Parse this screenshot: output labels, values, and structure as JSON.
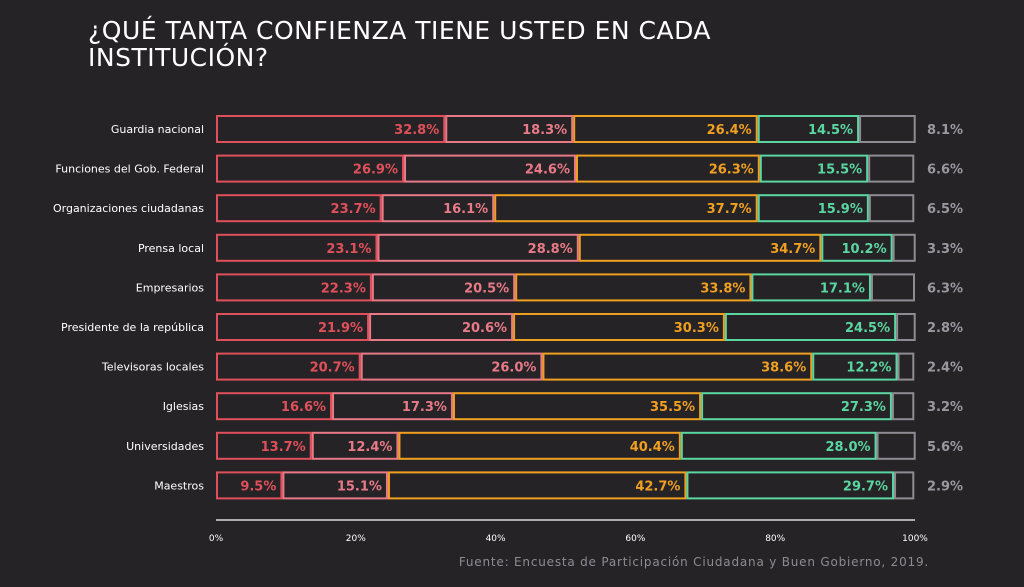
{
  "title": "¿QUÉ TANTA CONFIENZA TIENE USTED EN CADA INSTITUCIÓN?",
  "source": "Fuente: Encuesta de Participación Ciudadana y Buen Gobierno, 2019.",
  "colors": {
    "background": "#262327",
    "series": [
      "#e0505a",
      "#e87a88",
      "#f0a020",
      "#5ad6a0",
      "#8f8b93"
    ]
  },
  "chart_data": {
    "type": "bar",
    "orientation": "horizontal",
    "stacked": true,
    "categories": [
      "Guardia nacional",
      "Funciones del Gob. Federal",
      "Organizaciones ciudadanas",
      "Prensa local",
      "Empresarios",
      "Presidente de la república",
      "Televisoras locales",
      "Iglesias",
      "Universidades",
      "Maestros"
    ],
    "series": [
      {
        "values": [
          32.8,
          26.9,
          23.7,
          23.1,
          22.3,
          21.9,
          20.7,
          16.6,
          13.7,
          9.5
        ],
        "labels": [
          "32.8%",
          "26.9%",
          "23.7%",
          "23.1%",
          "22.3%",
          "21.9%",
          "20.7%",
          "16.6%",
          "13.7%",
          "9.5%"
        ]
      },
      {
        "values": [
          18.3,
          24.6,
          16.1,
          28.8,
          20.5,
          20.6,
          26.0,
          17.3,
          12.4,
          15.1
        ],
        "labels": [
          "18.3%",
          "24.6%",
          "16.1%",
          "28.8%",
          "20.5%",
          "20.6%",
          "26.0%",
          "17.3%",
          "12.4%",
          "15.1%"
        ]
      },
      {
        "values": [
          26.4,
          26.3,
          37.7,
          34.7,
          33.8,
          30.3,
          38.6,
          35.5,
          40.4,
          42.7
        ],
        "labels": [
          "26.4%",
          "26.3%",
          "37.7%",
          "34.7%",
          "33.8%",
          "30.3%",
          "38.6%",
          "35.5%",
          "40.4%",
          "42.7%"
        ]
      },
      {
        "values": [
          14.5,
          15.5,
          15.9,
          10.2,
          17.1,
          24.5,
          12.2,
          27.3,
          28.0,
          29.7
        ],
        "labels": [
          "14.5%",
          "15.5%",
          "15.9%",
          "10.2%",
          "17.1%",
          "24.5%",
          "12.2%",
          "27.3%",
          "28.0%",
          "29.7%"
        ]
      },
      {
        "values": [
          8.1,
          6.6,
          6.5,
          3.3,
          6.3,
          2.8,
          2.4,
          3.2,
          5.6,
          2.9
        ],
        "labels": [
          "8.1%",
          "6.6%",
          "6.5%",
          "3.3%",
          "6.3%",
          "2.8%",
          "2.4%",
          "3.2%",
          "5.6%",
          "2.9%"
        ]
      }
    ],
    "xlim": [
      0,
      100
    ],
    "xticks": [
      "0%",
      "20%",
      "40%",
      "60%",
      "80%",
      "100%"
    ],
    "grid": false,
    "legend": "none"
  }
}
